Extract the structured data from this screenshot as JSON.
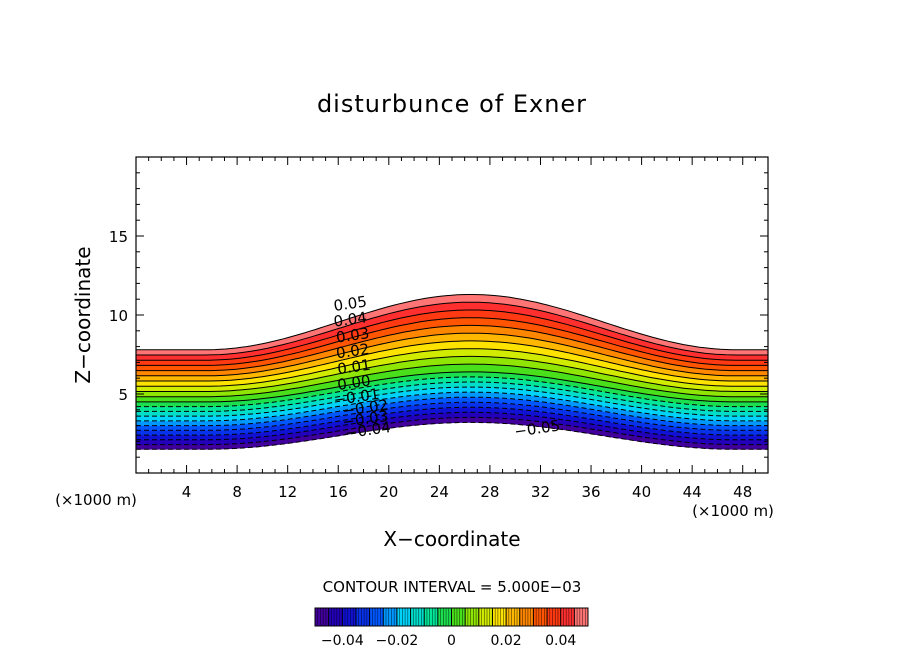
{
  "chart_data": {
    "type": "contour",
    "title": "disturbunce of Exner",
    "xlabel": "X−coordinate",
    "ylabel": "Z−coordinate",
    "x_unit": "(×1000 m)",
    "y_unit": "(×1000 m)",
    "xlim": [
      0,
      50
    ],
    "ylim": [
      0,
      20
    ],
    "x_ticks": [
      4,
      8,
      12,
      16,
      20,
      24,
      28,
      32,
      36,
      40,
      44,
      48
    ],
    "y_ticks": [
      5,
      10,
      15
    ],
    "field": {
      "value_range": [
        -0.05,
        0.05
      ],
      "lower_boundary_z": {
        "plateau": 1.5,
        "peak": 3.2,
        "peak_x": 26.5
      },
      "upper_boundary_z": {
        "plateau": 7.8,
        "peak": 11.3,
        "peak_x": 26.5
      },
      "zero_level_z": {
        "plateau": 4.5,
        "peak": 6.4,
        "peak_x": 26.5
      },
      "plateau_until_x": 5.5,
      "negative_contours": "dashed"
    },
    "contour_labels": [
      {
        "text": "0.05",
        "x": 17.0,
        "z": 10.4
      },
      {
        "text": "0.04",
        "x": 17.0,
        "z": 9.4
      },
      {
        "text": "0.03",
        "x": 17.2,
        "z": 8.4
      },
      {
        "text": "0.02",
        "x": 17.2,
        "z": 7.4
      },
      {
        "text": "0.01",
        "x": 17.3,
        "z": 6.4
      },
      {
        "text": "0.00",
        "x": 17.3,
        "z": 5.4
      },
      {
        "text": "−0.01",
        "x": 17.5,
        "z": 4.5
      },
      {
        "text": "−0.02",
        "x": 18.2,
        "z": 3.8
      },
      {
        "text": "−0.03",
        "x": 18.2,
        "z": 3.1
      },
      {
        "text": "−0.04",
        "x": 18.4,
        "z": 2.4
      },
      {
        "text": "−0.05",
        "x": 31.8,
        "z": 2.5
      }
    ],
    "contour_interval_text": "CONTOUR INTERVAL = 5.000E−03",
    "colorbar": {
      "range": [
        -0.05,
        0.05
      ],
      "ticks": [
        {
          "value": -0.04,
          "label": "−0.04"
        },
        {
          "value": -0.02,
          "label": "−0.02"
        },
        {
          "value": 0,
          "label": "0"
        },
        {
          "value": 0.02,
          "label": "0.02"
        },
        {
          "value": 0.04,
          "label": "0.04"
        }
      ]
    }
  }
}
